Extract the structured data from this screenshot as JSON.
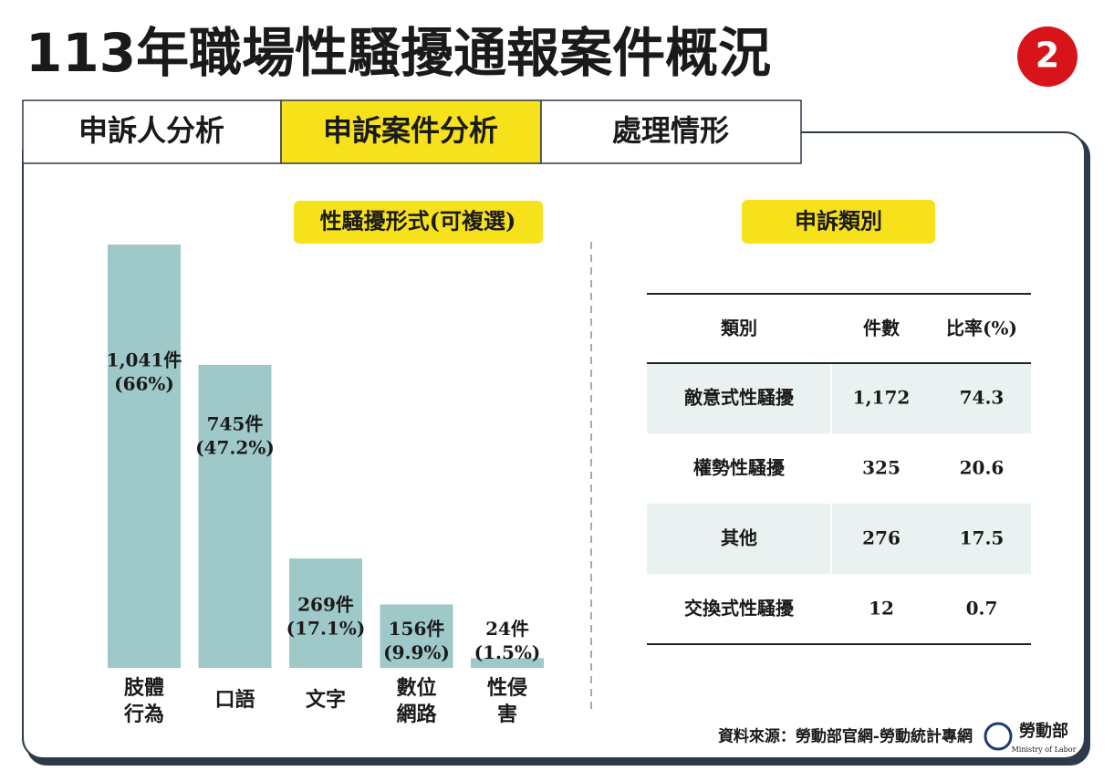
{
  "header": {
    "title": "113年職場性騷擾通報案件概況",
    "badge": "2"
  },
  "tabs": [
    "申訴人分析",
    "申訴案件分析",
    "處理情形"
  ],
  "chart_data": {
    "type": "bar",
    "title": "性騷擾形式(可複選)",
    "categories": [
      "肢體行為",
      "口語",
      "文字",
      "數位網路",
      "性侵害"
    ],
    "values": [
      1041,
      745,
      269,
      156,
      24
    ],
    "value_labels": [
      "1,041件",
      "745件",
      "269件",
      "156件",
      "24件"
    ],
    "percent_labels": [
      "(66%)",
      "(47.2%)",
      "(17.1%)",
      "(9.9%)",
      "(1.5%)"
    ],
    "color": "#9fc8c8"
  },
  "table": {
    "title": "申訴類別",
    "header": [
      "類別",
      "件數",
      "比率(%)"
    ],
    "rows": [
      [
        "敵意式性騷擾",
        "1,172",
        "74.3"
      ],
      [
        "權勢性騷擾",
        "325",
        "20.6"
      ],
      [
        "其他",
        "276",
        "17.5"
      ],
      [
        "交換式性騷擾",
        "12",
        "0.7"
      ]
    ]
  },
  "footer": {
    "source": "資料來源：勞動部官網-勞動統計專網",
    "logo": "勞動部",
    "logo_en": "Ministry of Labor"
  }
}
